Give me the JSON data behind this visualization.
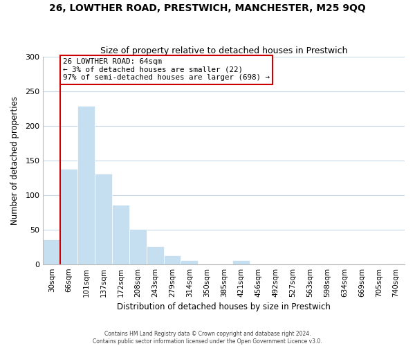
{
  "title": "26, LOWTHER ROAD, PRESTWICH, MANCHESTER, M25 9QQ",
  "subtitle": "Size of property relative to detached houses in Prestwich",
  "xlabel": "Distribution of detached houses by size in Prestwich",
  "ylabel": "Number of detached properties",
  "bar_color": "#c5dff0",
  "bar_edge_color": "#c5dff0",
  "background_color": "#ffffff",
  "grid_color": "#c8d8e8",
  "bin_labels": [
    "30sqm",
    "66sqm",
    "101sqm",
    "137sqm",
    "172sqm",
    "208sqm",
    "243sqm",
    "279sqm",
    "314sqm",
    "350sqm",
    "385sqm",
    "421sqm",
    "456sqm",
    "492sqm",
    "527sqm",
    "563sqm",
    "598sqm",
    "634sqm",
    "669sqm",
    "705sqm",
    "740sqm"
  ],
  "bar_heights": [
    36,
    138,
    229,
    131,
    86,
    51,
    26,
    13,
    6,
    0,
    0,
    6,
    0,
    0,
    0,
    0,
    0,
    0,
    0,
    0,
    1
  ],
  "ylim": [
    0,
    300
  ],
  "yticks": [
    0,
    50,
    100,
    150,
    200,
    250,
    300
  ],
  "annotation_text": "26 LOWTHER ROAD: 64sqm\n← 3% of detached houses are smaller (22)\n97% of semi-detached houses are larger (698) →",
  "vline_bar_index": 1,
  "vline_color": "#cc0000",
  "annotation_box_color": "#ffffff",
  "annotation_box_edge": "#cc0000",
  "footer_line1": "Contains HM Land Registry data © Crown copyright and database right 2024.",
  "footer_line2": "Contains public sector information licensed under the Open Government Licence v3.0."
}
